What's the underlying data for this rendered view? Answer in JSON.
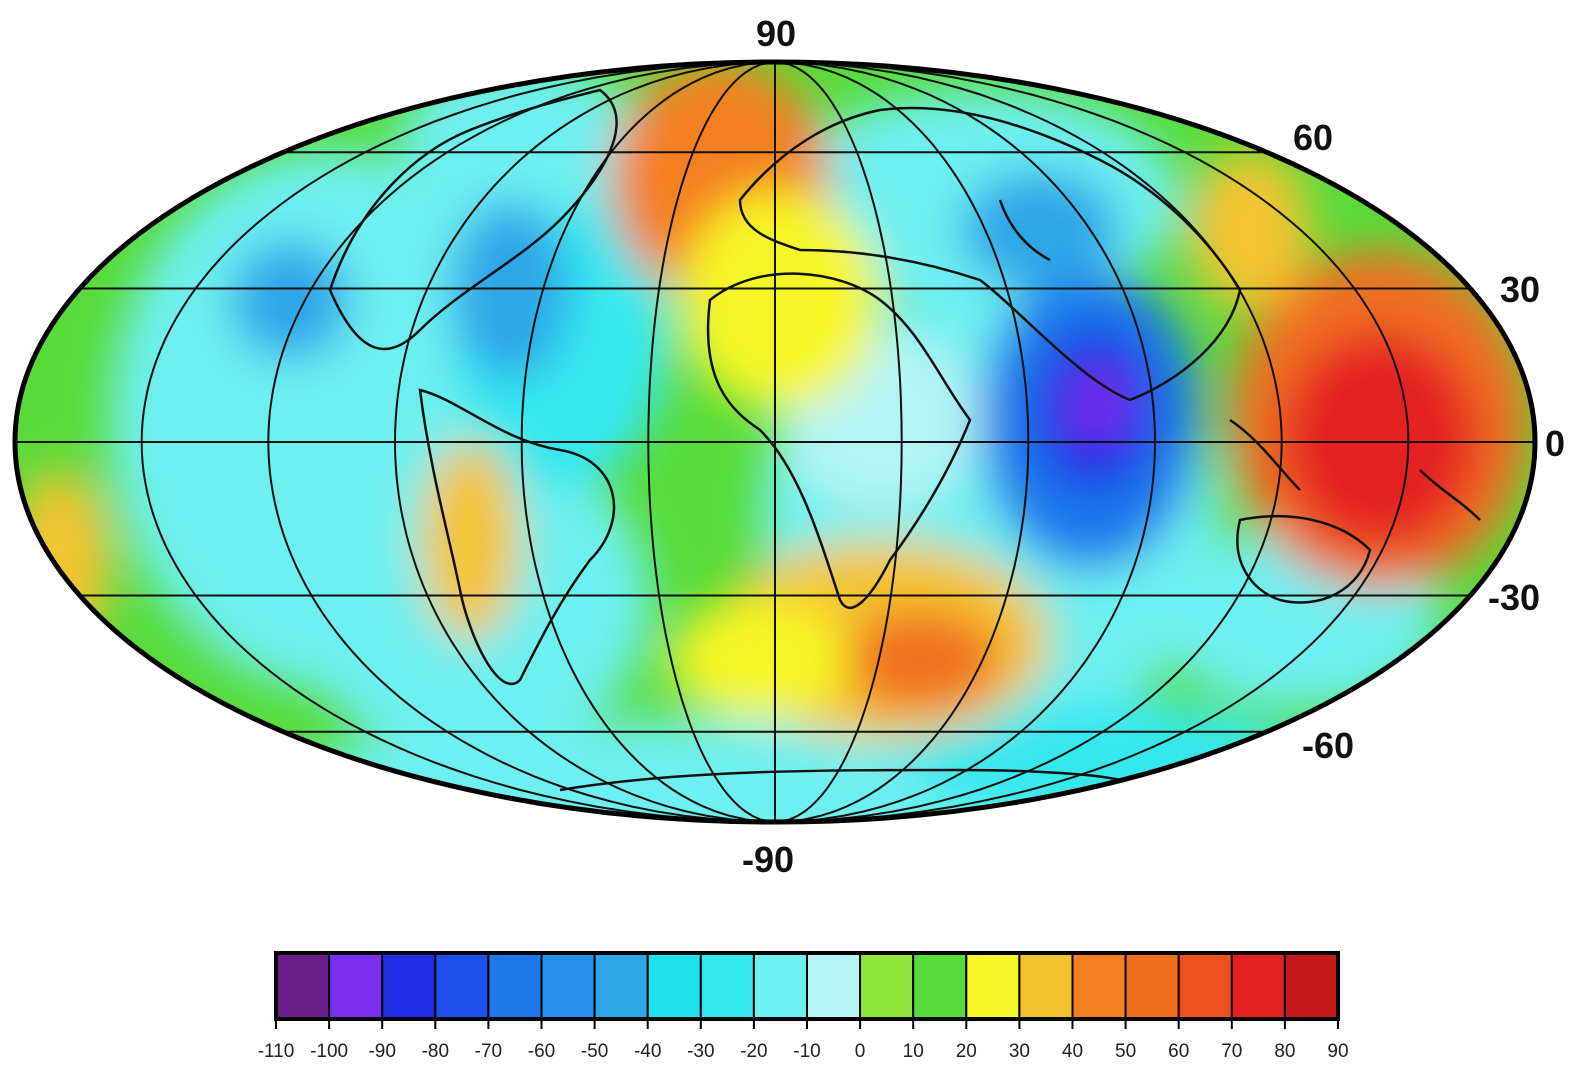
{
  "map": {
    "projection": "Mollweide",
    "lat_labels": {
      "north_pole": "90",
      "lat_60": "60",
      "lat_30": "30",
      "equator": "0",
      "lat_minus_30": "-30",
      "lat_minus_60": "-60",
      "south_pole": "-90"
    },
    "graticule": {
      "lat_step": 30,
      "lon_step": 30
    }
  },
  "colorbar": {
    "colors": [
      "#6a1e8c",
      "#7a2ef0",
      "#1f2fe6",
      "#1c4fec",
      "#1e78ea",
      "#2690ea",
      "#2fa6e8",
      "#1fe2ee",
      "#35e8ee",
      "#6ef0f0",
      "#b4f4f4",
      "#8ee63a",
      "#58dc3a",
      "#f6f628",
      "#f4c430",
      "#f48024",
      "#f07020",
      "#ee5020",
      "#e42020",
      "#c41818"
    ],
    "tick_labels": [
      "-110",
      "-100",
      "-90",
      "-80",
      "-70",
      "-60",
      "-50",
      "-40",
      "-30",
      "-20",
      "-10",
      "0",
      "10",
      "20",
      "30",
      "40",
      "50",
      "60",
      "70",
      "80",
      "90"
    ]
  }
}
